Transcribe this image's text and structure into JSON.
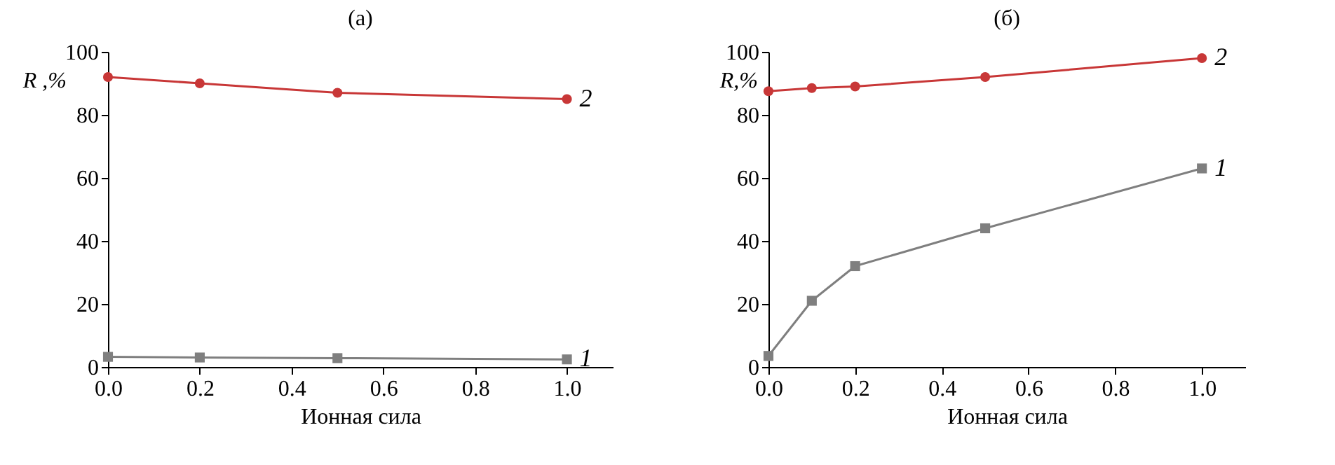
{
  "chart_data": [
    {
      "type": "line",
      "title": "(а)",
      "xlabel": "Ионная сила",
      "ylabel": "R ,%",
      "x": [
        0,
        0.2,
        0.5,
        1.0
      ],
      "xlim": [
        0,
        1.1
      ],
      "xticks": [
        {
          "value": 0,
          "label": "0.0"
        },
        {
          "value": 0.2,
          "label": "0.2"
        },
        {
          "value": 0.4,
          "label": "0.4"
        },
        {
          "value": 0.6,
          "label": "0.6"
        },
        {
          "value": 0.8,
          "label": "0.8"
        },
        {
          "value": 1.0,
          "label": "1.0"
        }
      ],
      "ylim": [
        0,
        100
      ],
      "yticks": [
        0,
        20,
        40,
        60,
        80,
        100
      ],
      "grid": false,
      "series": [
        {
          "name": "2",
          "color": "#c83737",
          "marker": "circle",
          "values": [
            92,
            90,
            87,
            85
          ]
        },
        {
          "name": "1",
          "color": "#7f7f7f",
          "marker": "square",
          "values": [
            3.2,
            3,
            2.8,
            2.4
          ]
        }
      ]
    },
    {
      "type": "line",
      "title": "(б)",
      "xlabel": "Ионная сила",
      "ylabel": "R,%",
      "x": [
        0,
        0.1,
        0.2,
        0.5,
        1.0
      ],
      "xlim": [
        0,
        1.1
      ],
      "xticks": [
        {
          "value": 0,
          "label": "0.0"
        },
        {
          "value": 0.2,
          "label": "0.2"
        },
        {
          "value": 0.4,
          "label": "0.4"
        },
        {
          "value": 0.6,
          "label": "0.6"
        },
        {
          "value": 0.8,
          "label": "0.8"
        },
        {
          "value": 1.0,
          "label": "1.0"
        }
      ],
      "ylim": [
        0,
        100
      ],
      "yticks": [
        0,
        20,
        40,
        60,
        80,
        100
      ],
      "grid": false,
      "series": [
        {
          "name": "2",
          "color": "#c83737",
          "marker": "circle",
          "values": [
            87.5,
            88.5,
            89,
            92,
            98
          ]
        },
        {
          "name": "1",
          "color": "#7f7f7f",
          "marker": "square",
          "values": [
            3.5,
            21,
            32,
            44,
            63
          ]
        }
      ]
    }
  ]
}
